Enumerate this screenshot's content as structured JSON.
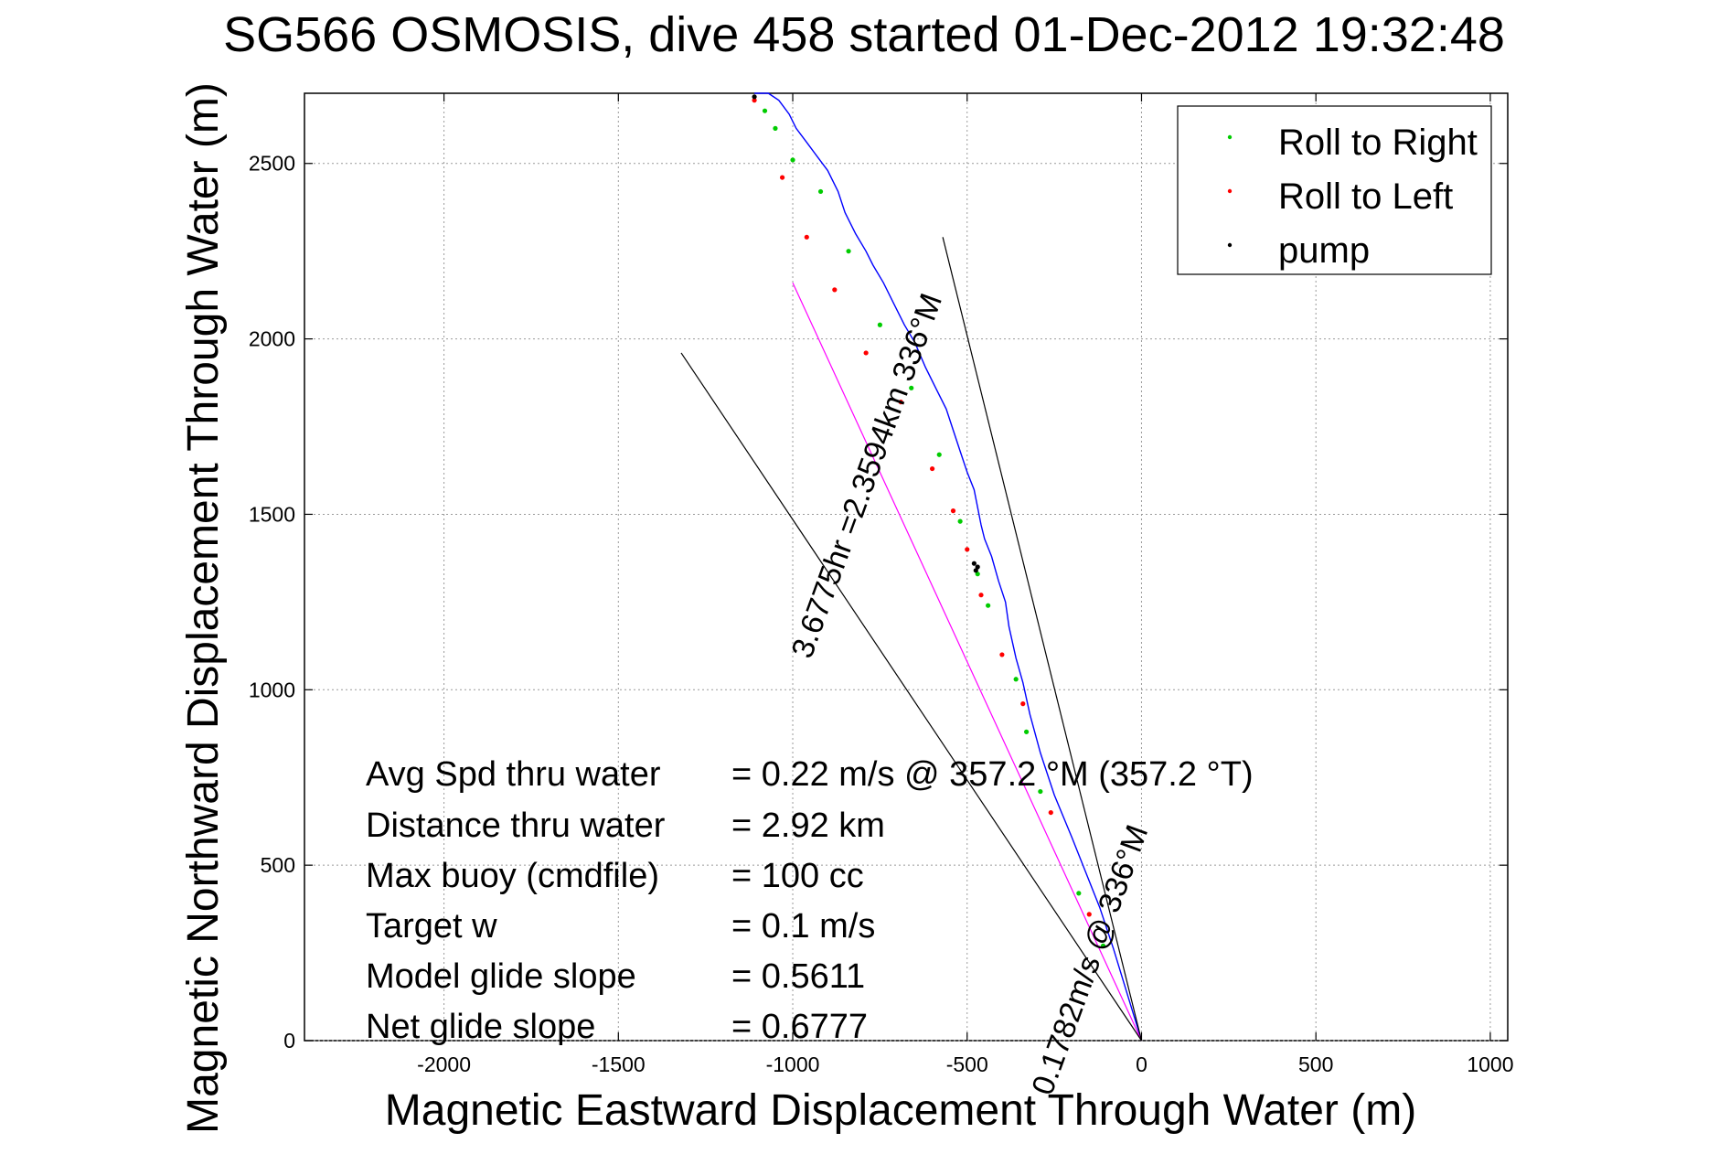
{
  "chart_data": {
    "type": "line",
    "title": "SG566 OSMOSIS, dive 458 started 01-Dec-2012 19:32:48",
    "xlabel": "Magnetic Eastward Displacement Through Water (m)",
    "ylabel": "Magnetic Northward Displacement Through Water (m)",
    "xlim": [
      -2400,
      1050
    ],
    "ylim": [
      0,
      2700
    ],
    "grid": true,
    "xticks": [
      -2000,
      -1500,
      -1000,
      -500,
      0,
      500,
      1000
    ],
    "xtick_labels": [
      "-2000",
      "-1500",
      "-1000",
      "-500",
      "0",
      "500",
      "1000"
    ],
    "yticks": [
      0,
      500,
      1000,
      1500,
      2000,
      2500
    ],
    "ytick_labels": [
      "0",
      "500",
      "1000",
      "1500",
      "2000",
      "2500"
    ],
    "legend_position": "top-right",
    "legend": [
      {
        "label": "Roll to Right",
        "color": "#00cc00"
      },
      {
        "label": "Roll to Left",
        "color": "#ff0000"
      },
      {
        "label": "pump",
        "color": "#000000"
      }
    ],
    "series": [
      {
        "kind": "track",
        "color": "#0000ff",
        "x": [
          0,
          -40,
          -80,
          -120,
          -160,
          -200,
          -250,
          -290,
          -320,
          -340,
          -360,
          -380,
          -390,
          -410,
          -430,
          -450,
          -460,
          -470,
          -480,
          -500,
          -520,
          -540,
          -560,
          -590,
          -620,
          -650,
          -680,
          -710,
          -740,
          -770,
          -790,
          -820,
          -850,
          -870,
          -900,
          -930,
          -960,
          -990,
          -1010,
          -1040,
          -1070,
          -1090,
          -1110
        ],
        "y": [
          0,
          130,
          260,
          380,
          480,
          580,
          700,
          820,
          930,
          1020,
          1090,
          1180,
          1250,
          1310,
          1380,
          1430,
          1470,
          1520,
          1570,
          1620,
          1680,
          1740,
          1800,
          1860,
          1920,
          1990,
          2040,
          2100,
          2160,
          2210,
          2250,
          2300,
          2360,
          2420,
          2480,
          2520,
          2560,
          2600,
          2640,
          2680,
          2700,
          2700,
          2700
        ]
      },
      {
        "kind": "heading-line",
        "color": "#ff00ff",
        "x": [
          0,
          -1000
        ],
        "y": [
          0,
          2160
        ]
      },
      {
        "kind": "heading-line",
        "color": "#000000",
        "x": [
          0,
          -1320
        ],
        "y": [
          0,
          1960
        ]
      },
      {
        "kind": "heading-line",
        "color": "#000000",
        "x": [
          0,
          -570
        ],
        "y": [
          0,
          2290
        ]
      }
    ],
    "markers": {
      "roll_right": {
        "x": [
          -110,
          -180,
          -290,
          -330,
          -360,
          -440,
          -470,
          -520,
          -580,
          -660,
          -750,
          -840,
          -920,
          -1000,
          -1050,
          -1080
        ],
        "y": [
          270,
          420,
          710,
          880,
          1030,
          1240,
          1330,
          1480,
          1670,
          1860,
          2040,
          2250,
          2420,
          2510,
          2600,
          2650
        ]
      },
      "roll_left": {
        "x": [
          -150,
          -260,
          -340,
          -400,
          -460,
          -500,
          -540,
          -600,
          -690,
          -790,
          -880,
          -960,
          -1030,
          -1110
        ],
        "y": [
          360,
          650,
          960,
          1100,
          1270,
          1400,
          1510,
          1630,
          1820,
          1960,
          2140,
          2290,
          2460,
          2680
        ]
      },
      "pump": {
        "x": [
          -470,
          -475,
          -480,
          -1110
        ],
        "y": [
          1350,
          1340,
          1360,
          2690
        ]
      }
    },
    "path_labels": [
      {
        "text": "0.1782m/s @ 336°M",
        "x": -120,
        "y": 220,
        "angle": -70
      },
      {
        "text": "3.6775hr =2.3594km 336°M",
        "x": -760,
        "y": 1600,
        "angle": -70
      }
    ],
    "annotations": [
      {
        "label": "Avg Spd thru water",
        "value": "=  0.22 m/s @ 357.2 °M (357.2 °T)"
      },
      {
        "label": "Distance thru water",
        "value": "=  2.92 km"
      },
      {
        "label": "Max buoy (cmdfile)",
        "value": "= 100 cc"
      },
      {
        "label": "Target w",
        "value": "= 0.1 m/s"
      },
      {
        "label": "Model glide slope",
        "value": "= 0.5611"
      },
      {
        "label": "Net glide slope",
        "value": "= 0.6777"
      }
    ]
  }
}
